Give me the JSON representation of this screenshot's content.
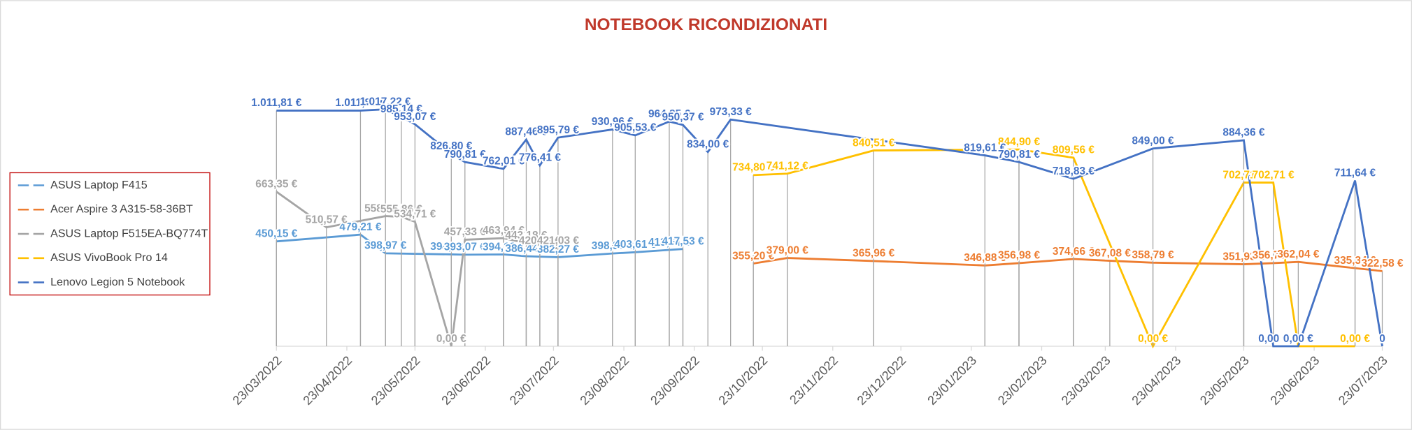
{
  "chart_data": {
    "type": "line",
    "title": "NOTEBOOK RICONDIZIONATI",
    "xlim": [
      "23/03/2022",
      "23/07/2023"
    ],
    "xticks": [
      "23/03/2022",
      "23/04/2022",
      "23/05/2022",
      "23/06/2022",
      "23/07/2022",
      "23/08/2022",
      "23/09/2022",
      "23/10/2022",
      "23/11/2022",
      "23/12/2022",
      "23/01/2023",
      "23/02/2023",
      "23/03/2023",
      "23/04/2023",
      "23/05/2023",
      "23/06/2023",
      "23/07/2023"
    ],
    "ylim": [
      0,
      1100
    ],
    "drop_lines": true,
    "legend": "left",
    "series": [
      {
        "name": "ASUS Laptop F415",
        "color": "#5b9bd5",
        "x": [
          "23/03/2022",
          "29/04/2022",
          "10/05/2022",
          "08/06/2022",
          "14/06/2022",
          "01/07/2022",
          "11/07/2022",
          "25/07/2022",
          "18/08/2022",
          "28/08/2022",
          "12/09/2022",
          "18/09/2022"
        ],
        "values": [
          450.15,
          479.21,
          398.97,
          394.38,
          393.07,
          394.18,
          386.44,
          382.27,
          398.3,
          403.61,
          413.61,
          417.53
        ],
        "value_labels": [
          "450,15 €",
          "479,21 €",
          "398,97 €",
          "394,38 €",
          "393,07 €",
          "394,18 €",
          "386,44 €",
          "382,27 €",
          "398,30 €",
          "403,61 €",
          "413,61 €",
          "417,53 €"
        ]
      },
      {
        "name": "Acer Aspire 3 A315-58-36BT",
        "color": "#ed7d31",
        "x": [
          "19/10/2022",
          "03/11/2022",
          "11/12/2022",
          "29/01/2023",
          "13/02/2023",
          "09/03/2023",
          "25/03/2023",
          "13/04/2023",
          "23/05/2023",
          "05/06/2023",
          "16/06/2023",
          "11/07/2023",
          "23/07/2023"
        ],
        "values": [
          355.2,
          379.0,
          365.96,
          346.88,
          356.98,
          374.66,
          367.08,
          358.79,
          351.93,
          356.78,
          362.04,
          335.34,
          322.58
        ],
        "value_labels": [
          "355,20 €",
          "379,00 €",
          "365,96 €",
          "346,88 €",
          "356,98 €",
          "374,66 €",
          "367,08 €",
          "358,79 €",
          "351,93 €",
          "356,78 €",
          "362,04 €",
          "335,34 €",
          "322,58 €"
        ]
      },
      {
        "name": "ASUS Laptop F515EA-BQ774T",
        "color": "#a5a5a5",
        "x": [
          "23/03/2022",
          "14/04/2022",
          "10/05/2022",
          "17/05/2022",
          "23/05/2022",
          "08/06/2022",
          "14/06/2022",
          "01/07/2022",
          "11/07/2022",
          "17/07/2022",
          "25/07/2022"
        ],
        "values": [
          663.35,
          510.57,
          558.85,
          555.86,
          534.71,
          0.0,
          457.33,
          463.94,
          443.18,
          420.09,
          421.03
        ],
        "value_labels": [
          "663,35 €",
          "510,57 €",
          "558,85 €",
          "555,86 €",
          "534,71 €",
          "0,00 €",
          "457,33 €",
          "463,94 €",
          "443,18 €",
          "420,09 €",
          "421,03 €"
        ]
      },
      {
        "name": "ASUS VivoBook Pro 14",
        "color": "#ffc000",
        "x": [
          "19/10/2022",
          "03/11/2022",
          "11/12/2022",
          "13/02/2023",
          "09/03/2023",
          "13/04/2023",
          "23/05/2023",
          "05/06/2023",
          "16/06/2023",
          "11/07/2023"
        ],
        "values": [
          734.8,
          741.12,
          840.51,
          844.9,
          809.56,
          0.0,
          702.71,
          702.71,
          0.0,
          0.0
        ],
        "value_labels": [
          "734,80 €",
          "741,12 €",
          "840,51 €",
          "844,90 €",
          "809,56 €",
          "0,00 €",
          "702,71 €",
          "702,71 €",
          "0,00 €",
          "0,00 €"
        ]
      },
      {
        "name": "Lenovo Legion 5 Notebook",
        "color": "#4472c4",
        "x": [
          "23/03/2022",
          "29/04/2022",
          "10/05/2022",
          "17/05/2022",
          "23/05/2022",
          "08/06/2022",
          "14/06/2022",
          "01/07/2022",
          "11/07/2022",
          "17/07/2022",
          "25/07/2022",
          "18/08/2022",
          "28/08/2022",
          "12/09/2022",
          "18/09/2022",
          "29/09/2022",
          "09/10/2022",
          "29/01/2023",
          "13/02/2023",
          "09/03/2023",
          "13/04/2023",
          "23/05/2023",
          "05/06/2023",
          "16/06/2023",
          "11/07/2023",
          "23/07/2023"
        ],
        "values": [
          1011.81,
          1011.81,
          1017.22,
          985.14,
          953.07,
          826.8,
          790.81,
          762.01,
          887.46,
          776.41,
          895.79,
          930.96,
          905.53,
          964.85,
          950.37,
          834.0,
          973.33,
          819.61,
          790.81,
          718.83,
          849.0,
          884.36,
          0.0,
          0.0,
          711.64,
          0
        ],
        "value_labels": [
          "1.011,81 €",
          "1.011,81 €",
          "1.017,22 €",
          "985,14 €",
          "953,07 €",
          "826,80 €",
          "790,81 €",
          "762,01 €",
          "887,46 €",
          "776,41 €",
          "895,79 €",
          "930,96 €",
          "905,53 €",
          "964,85 €",
          "950,37 €",
          "834,00 €",
          "973,33 €",
          "819,61 €",
          "790,81 €",
          "718,83 €",
          "849,00 €",
          "884,36 €",
          "0,00 €",
          "0,00 €",
          "711,64 €",
          "0"
        ]
      }
    ]
  }
}
